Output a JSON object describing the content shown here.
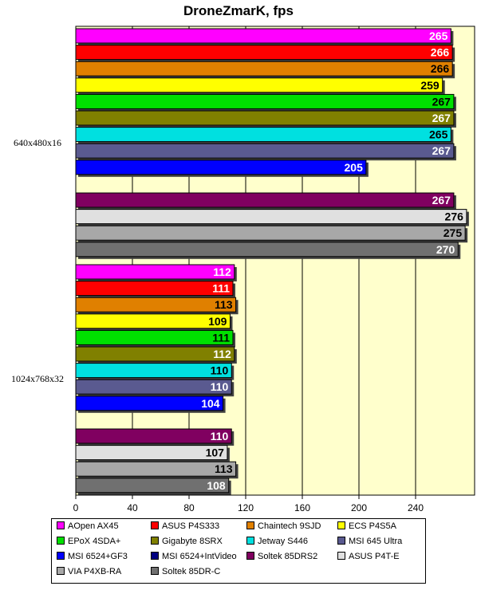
{
  "chart_data": {
    "type": "bar",
    "orientation": "horizontal",
    "title": "DroneZmarK, fps",
    "xlabel": "",
    "ylabel": "",
    "xlim": [
      0,
      270
    ],
    "xticks": [
      0,
      40,
      80,
      120,
      160,
      200,
      240
    ],
    "grid": true,
    "legend_position": "bottom",
    "categories": [
      "640x480x16",
      "1024x768x32"
    ],
    "series": [
      {
        "name": "AOpen AX45",
        "color": "#ff00ff",
        "label_color": "#ffffff",
        "values": [
          265,
          112
        ]
      },
      {
        "name": "ASUS P4S333",
        "color": "#ff0000",
        "label_color": "#ffffff",
        "values": [
          266,
          111
        ]
      },
      {
        "name": "Chaintech 9SJD",
        "color": "#e08000",
        "label_color": "#000000",
        "values": [
          266,
          113
        ]
      },
      {
        "name": "ECS P4S5A",
        "color": "#ffff00",
        "label_color": "#000000",
        "values": [
          259,
          109
        ]
      },
      {
        "name": "EPoX 4SDA+",
        "color": "#00e000",
        "label_color": "#000000",
        "values": [
          267,
          111
        ]
      },
      {
        "name": "Gigabyte 8SRX",
        "color": "#808000",
        "label_color": "#ffffff",
        "values": [
          267,
          112
        ]
      },
      {
        "name": "Jetway S446",
        "color": "#00e0e0",
        "label_color": "#000000",
        "values": [
          265,
          110
        ]
      },
      {
        "name": "MSI 645 Ultra",
        "color": "#5a5a90",
        "label_color": "#ffffff",
        "values": [
          267,
          110
        ]
      },
      {
        "name": "MSI 6524+GF3",
        "color": "#0000ff",
        "label_color": "#ffffff",
        "values": [
          205,
          104
        ]
      },
      {
        "name": "MSI 6524+IntVideo",
        "color": "#000080",
        "label_color": "#ffffff",
        "values": [
          null,
          null
        ]
      },
      {
        "name": "Soltek 85DRS2",
        "color": "#800060",
        "label_color": "#ffffff",
        "values": [
          267,
          110
        ]
      },
      {
        "name": "ASUS P4T-E",
        "color": "#e0e0e0",
        "label_color": "#000000",
        "values": [
          276,
          107
        ]
      },
      {
        "name": "VIA P4XB-RA",
        "color": "#a8a8a8",
        "label_color": "#000000",
        "values": [
          275,
          113
        ]
      },
      {
        "name": "Soltek 85DR-C",
        "color": "#707070",
        "label_color": "#ffffff",
        "values": [
          270,
          108
        ]
      }
    ]
  }
}
